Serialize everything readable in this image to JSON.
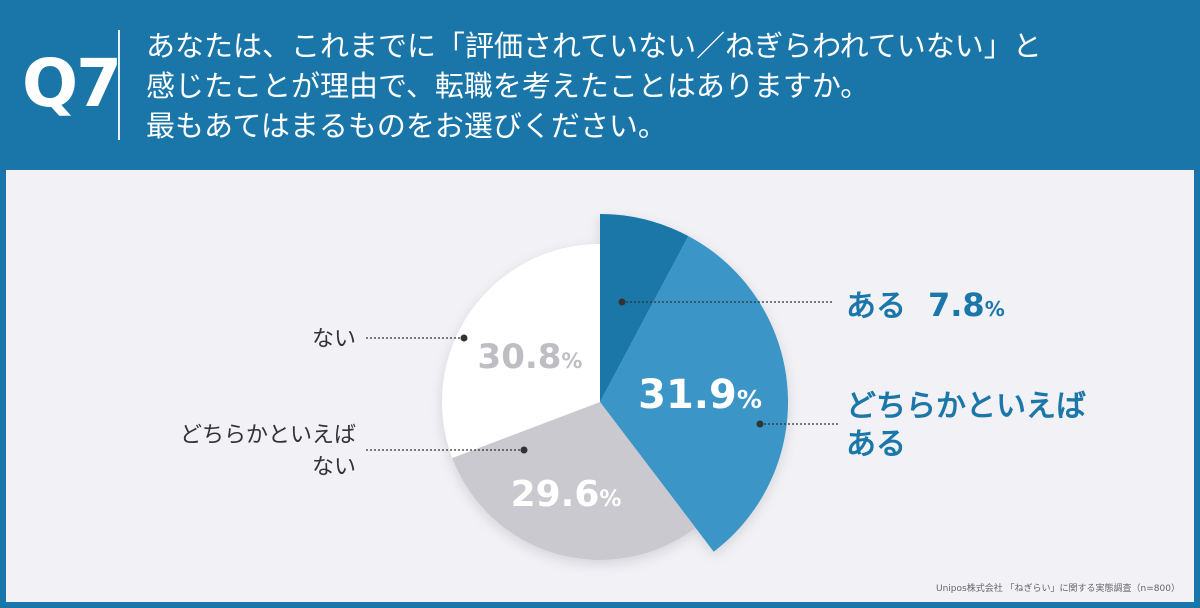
{
  "header": {
    "q_label": "Q7",
    "question_lines": [
      "あなたは、これまでに「評価されていない／ねぎらわれていない」と",
      "感じたことが理由で、転職を考えたことはありますか。",
      "最もあてはまるものをお選びください。"
    ]
  },
  "colors": {
    "header_bg": "#1a76a8",
    "accent_dark": "#1b77a9",
    "accent_light": "#3a95c7",
    "gray": "#c9c9cf",
    "white": "#ffffff",
    "text_dark": "#333333"
  },
  "chart_data": {
    "type": "pie",
    "slices": [
      {
        "label": "ある",
        "value": 7.8,
        "value_label": "7.8",
        "unit": "%"
      },
      {
        "label": "どちらかといえばある",
        "label_lines": [
          "どちらかといえば",
          "ある"
        ],
        "value": 31.9,
        "value_label": "31.9",
        "unit": "%"
      },
      {
        "label": "どちらかといえばない",
        "label_lines": [
          "どちらかといえば",
          "ない"
        ],
        "value": 29.6,
        "value_label": "29.6",
        "unit": "%"
      },
      {
        "label": "ない",
        "value": 30.8,
        "value_label": "30.8",
        "unit": "%"
      }
    ]
  },
  "source": "Unipos株式会社 「ねぎらい」に関する実態調査（n=800）"
}
